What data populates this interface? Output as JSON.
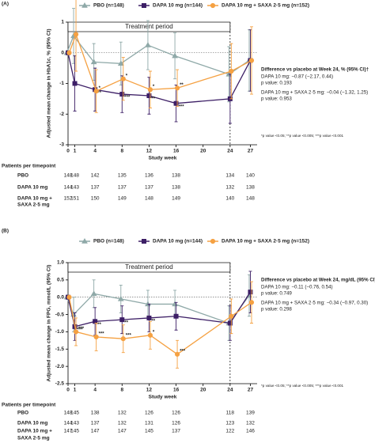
{
  "chart_data": [
    {
      "type": "line",
      "panel": "(A)",
      "ylabel": "Adjusted mean change in HbA1c, % (95% CI)",
      "xlabel": "Study week",
      "xlim": [
        0,
        28
      ],
      "xticks": [
        0,
        1,
        4,
        8,
        12,
        16,
        20,
        24,
        27
      ],
      "ylim": [
        -3,
        1
      ],
      "yticks": [
        -3,
        -2,
        -1,
        0,
        1
      ],
      "period_end": 24,
      "period_label": "Treatment period",
      "legend": "top",
      "series": [
        {
          "name": "PBO (n=148)",
          "color": "#8fa9a8",
          "marker": "triangle",
          "values": [
            0,
            0.55,
            -0.3,
            -0.35,
            0.25,
            -0.1,
            -0.7,
            -0.25
          ],
          "errors": [
            0,
            0.9,
            0.6,
            0.7,
            0.8,
            0.75,
            0.9,
            1.0
          ],
          "significance": [
            null,
            null,
            null,
            null,
            null,
            null,
            null,
            null
          ]
        },
        {
          "name": "DAPA 10 mg (n=144)",
          "color": "#3d1f66",
          "marker": "square",
          "values": [
            0,
            -1.0,
            -1.2,
            -1.35,
            -1.4,
            -1.65,
            -1.5,
            -0.25
          ],
          "errors": [
            0,
            0.9,
            0.7,
            0.6,
            0.6,
            0.6,
            0.8,
            1.0
          ],
          "significance": [
            null,
            null,
            "**",
            "***",
            "**",
            "***",
            null,
            null
          ]
        },
        {
          "name": "DAPA 10 mg + SAXA 2·5 mg (n=152)",
          "color": "#f5a142",
          "marker": "circle",
          "values": [
            0,
            0.6,
            -1.25,
            -0.85,
            -1.2,
            -1.15,
            -0.6,
            -0.25
          ],
          "errors": [
            0,
            1.2,
            0.7,
            0.7,
            0.6,
            0.6,
            0.9,
            1.1
          ],
          "significance": [
            null,
            null,
            "*",
            "*",
            "*",
            "**",
            null,
            null
          ]
        }
      ],
      "difference": {
        "title": "Difference vs placebo at Week 24, % (95% CI)†",
        "lines": [
          "DAPA 10 mg: −0.87 (−2.17, 0.44)",
          "p value: 0.193",
          "DAPA 10 mg + SAXA 2·5 mg: −0.04 (−1.32, 1.25)",
          "p value: 0.953"
        ]
      },
      "footnote": "*p value <0.05; **p value <0.005; ***p value <0.001",
      "patients": {
        "title": "Patients per timepoint",
        "rows": [
          {
            "label": [
              "PBO"
            ],
            "counts": [
              148,
              148,
              142,
              135,
              136,
              138,
              134,
              140
            ]
          },
          {
            "label": [
              "DAPA 10 mg"
            ],
            "counts": [
              144,
              143,
              137,
              137,
              137,
              138,
              132,
              138
            ]
          },
          {
            "label": [
              "DAPA 10 mg +",
              "SAXA 2·5 mg"
            ],
            "counts": [
              152,
              151,
              150,
              149,
              148,
              149,
              140,
              148
            ]
          }
        ]
      }
    },
    {
      "type": "line",
      "panel": "(B)",
      "ylabel": "Adjusted mean change in FPG, mmol/L (95% CI)",
      "xlabel": "Study week",
      "xlim": [
        0,
        28
      ],
      "xticks": [
        0,
        1,
        4,
        8,
        12,
        16,
        20,
        24,
        27
      ],
      "ylim": [
        -2.5,
        1.0
      ],
      "yticks": [
        -2.5,
        {
          "value": -2,
          "label": "-2.0"
        },
        -1.5,
        {
          "value": -1,
          "label": "-1.0"
        },
        -0.5,
        {
          "value": 0,
          "label": "0.0"
        },
        0.5,
        {
          "value": 1,
          "label": "1.0"
        }
      ],
      "period_end": 24,
      "period_label": "Treatment period",
      "legend": "top",
      "series": [
        {
          "name": "PBO (n=148)",
          "color": "#8fa9a8",
          "marker": "triangle",
          "values": [
            0,
            -0.5,
            0.1,
            -0.05,
            -0.2,
            -0.2,
            -0.75,
            0.05
          ],
          "errors": [
            0,
            0.5,
            0.4,
            0.4,
            0.4,
            0.4,
            0.5,
            0.6
          ],
          "significance": [
            null,
            null,
            null,
            null,
            null,
            null,
            null,
            null
          ]
        },
        {
          "name": "DAPA 10 mg (n=144)",
          "color": "#3d1f66",
          "marker": "square",
          "values": [
            0,
            -0.85,
            -0.7,
            -0.65,
            -0.6,
            -0.55,
            -0.75,
            0.15
          ],
          "errors": [
            0,
            0.4,
            0.4,
            0.4,
            0.4,
            0.4,
            0.5,
            0.6
          ],
          "significance": [
            null,
            "***",
            "**",
            "**",
            "**",
            null,
            null,
            null
          ]
        },
        {
          "name": "DAPA 10 mg + SAXA 2·5 mg (n=152)",
          "color": "#f5a142",
          "marker": "circle",
          "values": [
            0,
            -1.0,
            -1.15,
            -1.2,
            -1.1,
            -1.65,
            -0.55,
            -0.15
          ],
          "errors": [
            0,
            0.4,
            0.4,
            0.4,
            0.4,
            0.4,
            0.5,
            0.6
          ],
          "significance": [
            null,
            "***",
            "***",
            "***",
            "*",
            "***",
            null,
            null
          ]
        }
      ],
      "difference": {
        "title": "Difference vs placebo at Week 24, mg/dL (95% CI)†",
        "lines": [
          "DAPA 10 mg: −0.11 (−0.76, 0.54)",
          "p value: 0.749",
          "DAPA 10 mg + SAXA 2·5 mg: −0.34 (−0.97, 0.30)",
          "p value: 0.298"
        ]
      },
      "footnote": "*p value <0.05; **p value <0.005; ***p value <0.001",
      "patients": {
        "title": "Patients per timepoint",
        "rows": [
          {
            "label": [
              "PBO"
            ],
            "counts": [
              148,
              145,
              138,
              132,
              126,
              126,
              118,
              139
            ]
          },
          {
            "label": [
              "DAPA 10 mg"
            ],
            "counts": [
              144,
              143,
              137,
              132,
              131,
              126,
              123,
              132
            ]
          },
          {
            "label": [
              "DAPA 10 mg +",
              "SAXA 2·5 mg"
            ],
            "counts": [
              147,
              145,
              147,
              147,
              145,
              137,
              122,
              146
            ]
          }
        ]
      }
    }
  ]
}
